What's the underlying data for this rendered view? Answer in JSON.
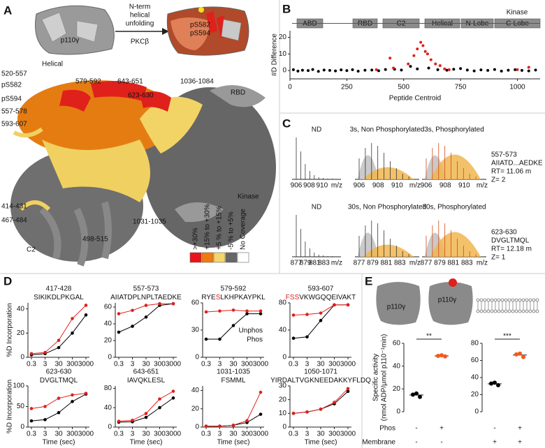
{
  "panel_labels": [
    "A",
    "B",
    "C",
    "D",
    "E"
  ],
  "panel_a": {
    "schematic_label": "p110γ",
    "arrow_text": [
      "N-term",
      "helical",
      "unfolding"
    ],
    "arrow_sub": "PKCβ",
    "sites": [
      "pS582",
      "pS594"
    ],
    "labels": [
      {
        "text": "Helical"
      },
      {
        "text": "520-557"
      },
      {
        "text": "pS582",
        "color": "#e0201b"
      },
      {
        "text": "pS594",
        "color": "#e0201b"
      },
      {
        "text": "557-578"
      },
      {
        "text": "593-607"
      },
      {
        "text": "579-592"
      },
      {
        "text": "643-651"
      },
      {
        "text": "623-630"
      },
      {
        "text": "1036-1084"
      },
      {
        "text": "RBD"
      },
      {
        "text": "Kinase"
      },
      {
        "text": "414-431"
      },
      {
        "text": "467-484"
      },
      {
        "text": "1031-1035"
      },
      {
        "text": "498-515"
      },
      {
        "text": "C2"
      }
    ],
    "legend": [
      {
        "text": ">+30%",
        "color": "#e8141a"
      },
      {
        "text": "+15% to +30%",
        "color": "#f07a10"
      },
      {
        "text": "+5 % to +15%",
        "color": "#f5d56a"
      },
      {
        "text": "-5 % to +5%",
        "color": "#666666"
      },
      {
        "text": "No Coverage",
        "color": "#ffffff"
      }
    ]
  },
  "panel_c": {
    "rows": [
      {
        "titles": [
          "ND",
          "3s, Non Phosphorylated",
          "3s, Phosphorylated"
        ],
        "mz_ticks": [
          "906",
          "908",
          "910"
        ],
        "mz_unit": "m/z",
        "info": [
          "557-573",
          "AIIATD...AEDKE",
          "RT= 11.06 m",
          "Z= 2"
        ]
      },
      {
        "titles": [
          "ND",
          "30s, Non Phosphorylated",
          "30s, Phosphorylated"
        ],
        "mz_ticks": [
          "877",
          "879",
          "881",
          "883"
        ],
        "mz_unit": "m/z",
        "info": [
          "623-630",
          "DVGLTMQL",
          "RT= 12.18 m",
          "Z= 1"
        ]
      }
    ]
  },
  "panel_e": {
    "icons": [
      "p110γ",
      "p110γ"
    ],
    "ylabel": [
      "Specific activity",
      "(nmol ADP/μmol p110⁻¹min)"
    ],
    "rows": [
      {
        "label": "Phos",
        "cells": [
          "-",
          "+",
          "-",
          "+"
        ],
        "highlight_color": "#e0201b"
      },
      {
        "label": "Membrane",
        "cells": [
          "-",
          "-",
          "+",
          "+"
        ]
      }
    ]
  },
  "chart_data": [
    {
      "type": "scatter",
      "xlabel": "Peptide Centroid",
      "ylabel": "#D Difference",
      "xlim": [
        0,
        1100
      ],
      "xticks": [
        0,
        250,
        500,
        750,
        1000
      ],
      "ylim": [
        -5,
        24
      ],
      "yticks": [
        0,
        10,
        20
      ],
      "domains": [
        "ABD",
        "RBD",
        "C2",
        "Helical",
        "N-Lobe",
        "C-Lobe"
      ],
      "domain_group": "Kinase",
      "series": [
        {
          "color": "#000000",
          "x": [
            15,
            35,
            55,
            80,
            100,
            125,
            150,
            175,
            200,
            225,
            250,
            275,
            300,
            330,
            360,
            390,
            420,
            460,
            490,
            530,
            560,
            610,
            650,
            690,
            720,
            750,
            780,
            810,
            840,
            870,
            900,
            930,
            960,
            990,
            1020,
            1050,
            1080
          ],
          "values": [
            0.5,
            -0.3,
            0.2,
            0,
            0.6,
            -0.5,
            0.3,
            0.1,
            -0.2,
            0.4,
            0,
            0.5,
            -0.4,
            0.2,
            0.3,
            -0.1,
            0.6,
            0.8,
            0.3,
            2.5,
            1,
            1.5,
            0.5,
            0.2,
            0.8,
            1.2,
            0.3,
            -0.2,
            0.4,
            0.1,
            0.6,
            -0.3,
            0.2,
            0.5,
            0.1,
            -0.2,
            0.3
          ]
        },
        {
          "color": "#e0201b",
          "x": [
            380,
            440,
            455,
            520,
            545,
            560,
            575,
            585,
            595,
            605,
            620,
            640,
            660,
            680,
            700,
            1000,
            1050
          ],
          "values": [
            0.5,
            7.5,
            1.5,
            4,
            9,
            13,
            17,
            15,
            11.5,
            10,
            6.5,
            4,
            3,
            1,
            0.5,
            0.5,
            2
          ]
        }
      ]
    },
    {
      "type": "line",
      "title": "417-428",
      "subtitle_parts": [
        {
          "text": "SIKIKDLPKGAL"
        }
      ],
      "ylabel": "%D Incorporation",
      "x": [
        0.3,
        3,
        30,
        300,
        3000
      ],
      "xlim": [
        0.3,
        3000
      ],
      "xticks": [
        0.3,
        3,
        30,
        300,
        3000
      ],
      "xlog": true,
      "ylim": [
        0,
        45
      ],
      "yticks": [
        0,
        20,
        40
      ],
      "series": [
        {
          "color": "#000000",
          "values": [
            2,
            3,
            8,
            20,
            35
          ]
        },
        {
          "color": "#e0201b",
          "values": [
            3,
            4,
            14,
            32,
            43
          ]
        }
      ]
    },
    {
      "type": "line",
      "title": "557-573",
      "subtitle_parts": [
        {
          "text": "AIIATDPLNPLTAEDKE"
        }
      ],
      "x": [
        0.3,
        3,
        30,
        300,
        3000
      ],
      "xlim": [
        0.3,
        3000
      ],
      "xticks": [
        0.3,
        3,
        30,
        300,
        3000
      ],
      "xlog": true,
      "ylim": [
        0,
        65
      ],
      "yticks": [
        0,
        20,
        40,
        60
      ],
      "series": [
        {
          "color": "#000000",
          "values": [
            30,
            37,
            48,
            62,
            64
          ]
        },
        {
          "color": "#e0201b",
          "values": [
            52,
            56,
            62,
            64,
            64
          ]
        }
      ]
    },
    {
      "type": "line",
      "title": "579-592",
      "subtitle_parts": [
        {
          "text": "RYE"
        },
        {
          "text": "S",
          "color": "#e0201b"
        },
        {
          "text": "LKHPKAYPKL"
        }
      ],
      "x": [
        0.3,
        3,
        30,
        300,
        3000
      ],
      "xlim": [
        0.3,
        3000
      ],
      "xticks": [
        0.3,
        3,
        30,
        300,
        3000
      ],
      "xlog": true,
      "ylim": [
        0,
        60
      ],
      "yticks": [
        0,
        30,
        60
      ],
      "legend": true,
      "series": [
        {
          "name": "Unphos",
          "color": "#000000",
          "values": [
            20,
            20,
            35,
            48,
            48
          ]
        },
        {
          "name": "Phos",
          "color": "#e0201b",
          "values": [
            50,
            51,
            52,
            51,
            51
          ]
        }
      ]
    },
    {
      "type": "line",
      "title": "593-607",
      "subtitle_parts": [
        {
          "text": "FSS",
          "color": "#e0201b"
        },
        {
          "text": "VKWGQQEIVAKT"
        }
      ],
      "x": [
        0.3,
        3,
        30,
        300,
        3000
      ],
      "xlim": [
        0.3,
        3000
      ],
      "xticks": [
        0.3,
        3,
        30,
        300,
        3000
      ],
      "xlog": true,
      "ylim": [
        0,
        80
      ],
      "yticks": [
        0,
        40,
        80
      ],
      "series": [
        {
          "color": "#000000",
          "values": [
            28,
            30,
            54,
            77,
            77
          ]
        },
        {
          "color": "#e0201b",
          "values": [
            62,
            63,
            65,
            77,
            77
          ]
        }
      ]
    },
    {
      "type": "line",
      "title": "623-630",
      "subtitle_parts": [
        {
          "text": "DVGLTMQL"
        }
      ],
      "ylabel": "%D Incorporation",
      "xlabel": "Time (sec)",
      "x": [
        0.3,
        3,
        30,
        300,
        3000
      ],
      "xlim": [
        0.3,
        3000
      ],
      "xticks": [
        0.3,
        3,
        30,
        300,
        3000
      ],
      "xlog": true,
      "ylim": [
        0,
        100
      ],
      "yticks": [
        0,
        50,
        100
      ],
      "series": [
        {
          "color": "#000000",
          "values": [
            15,
            18,
            35,
            62,
            80
          ]
        },
        {
          "color": "#e0201b",
          "values": [
            45,
            50,
            70,
            78,
            82
          ]
        }
      ]
    },
    {
      "type": "line",
      "title": "643-651",
      "subtitle_parts": [
        {
          "text": "IAVQKLESL"
        }
      ],
      "xlabel": "Time (sec)",
      "x": [
        0.3,
        3,
        30,
        300,
        3000
      ],
      "xlim": [
        0.3,
        3000
      ],
      "xticks": [
        0.3,
        3,
        30,
        300,
        3000
      ],
      "xlog": true,
      "ylim": [
        0,
        85
      ],
      "yticks": [
        0,
        40,
        80
      ],
      "series": [
        {
          "color": "#000000",
          "values": [
            10,
            11,
            20,
            40,
            60
          ]
        },
        {
          "color": "#e0201b",
          "values": [
            12,
            14,
            28,
            58,
            74
          ]
        }
      ]
    },
    {
      "type": "line",
      "title": "1031-1035",
      "subtitle_parts": [
        {
          "text": "FSMML"
        }
      ],
      "xlabel": "Time (sec)",
      "x": [
        0.3,
        3,
        30,
        300,
        3000
      ],
      "xlim": [
        0.3,
        3000
      ],
      "xticks": [
        0.3,
        3,
        30,
        300,
        3000
      ],
      "xlog": true,
      "ylim": [
        0,
        45
      ],
      "yticks": [
        0,
        20,
        40
      ],
      "series": [
        {
          "color": "#000000",
          "values": [
            1,
            1,
            2,
            5,
            14
          ]
        },
        {
          "color": "#e0201b",
          "values": [
            1,
            1,
            2,
            7,
            38
          ]
        }
      ]
    },
    {
      "type": "line",
      "title": "1050-1071",
      "subtitle_parts": [
        {
          "text": "YIRDALTVGKNEEDAKKYFLDQ"
        }
      ],
      "xlabel": "Time (sec)",
      "x": [
        0.3,
        3,
        30,
        300,
        3000
      ],
      "xlim": [
        0.3,
        3000
      ],
      "xticks": [
        0.3,
        3,
        30,
        300,
        3000
      ],
      "xlog": true,
      "ylim": [
        0,
        30
      ],
      "yticks": [
        0,
        10,
        20,
        30
      ],
      "series": [
        {
          "color": "#000000",
          "values": [
            10,
            11,
            13,
            17,
            26
          ]
        },
        {
          "color": "#e0201b",
          "values": [
            10,
            11,
            13,
            18,
            28
          ]
        }
      ]
    },
    {
      "type": "strip",
      "ylim": [
        0,
        60
      ],
      "yticks": [
        0,
        20,
        40,
        60
      ],
      "significance": "**",
      "series": [
        {
          "color": "#000000",
          "values": [
            15,
            16,
            13
          ],
          "mean": 14.7
        },
        {
          "color": "#e0201b",
          "values": [
            49,
            49.5,
            48.5
          ],
          "mean": 49
        }
      ]
    },
    {
      "type": "strip",
      "ylim": [
        0,
        80
      ],
      "yticks": [
        0,
        20,
        40,
        60,
        80
      ],
      "significance": "***",
      "series": [
        {
          "color": "#000000",
          "values": [
            33,
            34,
            31
          ],
          "mean": 32.7
        },
        {
          "color": "#e0201b",
          "values": [
            67,
            68,
            64
          ],
          "mean": 66.3
        }
      ]
    }
  ]
}
